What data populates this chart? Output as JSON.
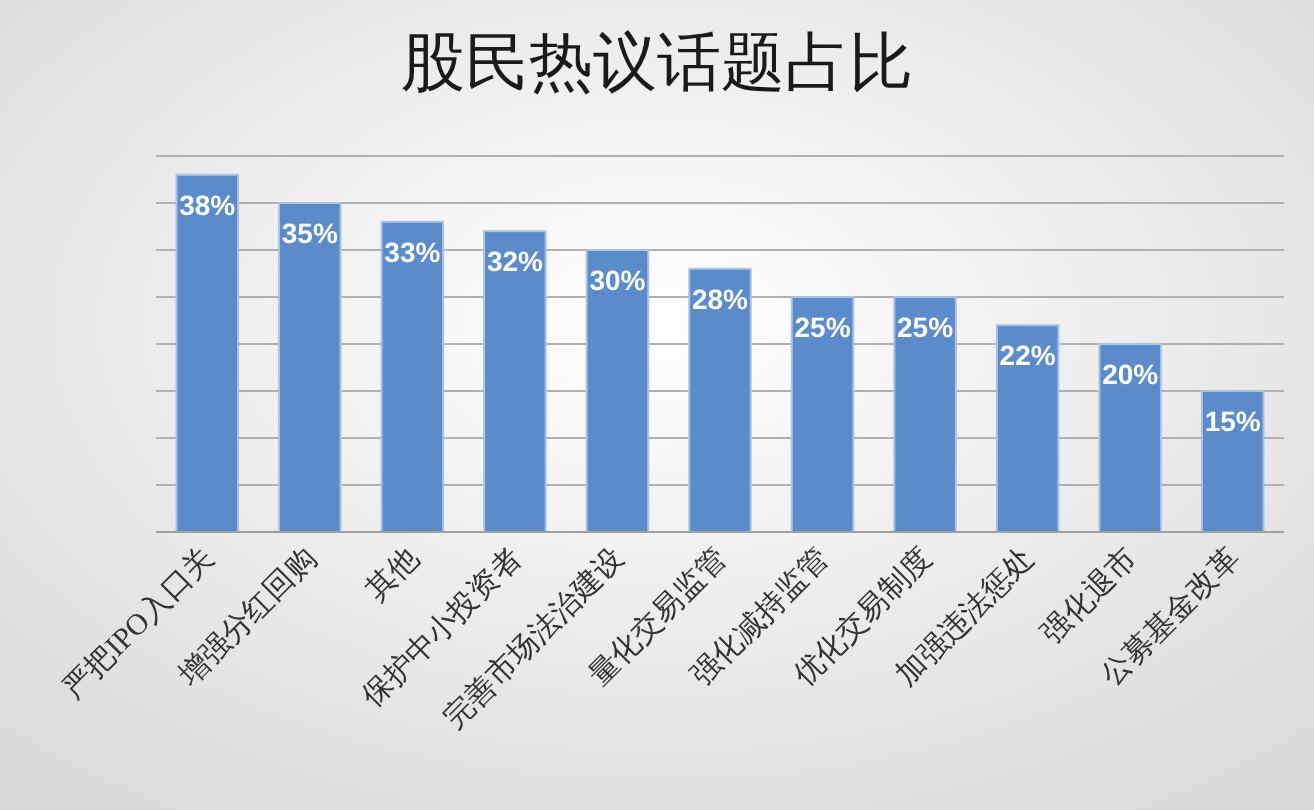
{
  "chart_data": {
    "type": "bar",
    "title": "股民热议话题占比",
    "categories": [
      "严把IPO入口关",
      "增强分红回购",
      "其他",
      "保护中小投资者",
      "完善市场法治建设",
      "量化交易监管",
      "强化减持监管",
      "优化交易制度",
      "加强违法惩处",
      "强化退市",
      "公募基金改革"
    ],
    "values": [
      38,
      35,
      33,
      32,
      30,
      28,
      25,
      25,
      22,
      20,
      15
    ],
    "value_labels": [
      "38%",
      "35%",
      "33%",
      "32%",
      "30%",
      "28%",
      "25%",
      "25%",
      "22%",
      "20%",
      "15%"
    ],
    "color": "#5b8bc9",
    "ylim": [
      0,
      40
    ],
    "yticks": [
      {
        "value": 0,
        "label": null
      },
      {
        "value": 5,
        "label": null
      },
      {
        "value": 10,
        "label": null
      },
      {
        "value": 15,
        "label": null
      },
      {
        "value": 20,
        "label": null
      },
      {
        "value": 25,
        "label": null
      },
      {
        "value": 30,
        "label": null
      },
      {
        "value": 35,
        "label": null
      },
      {
        "value": 40,
        "label": null
      }
    ],
    "tick_labels": "x",
    "grid": "y"
  }
}
